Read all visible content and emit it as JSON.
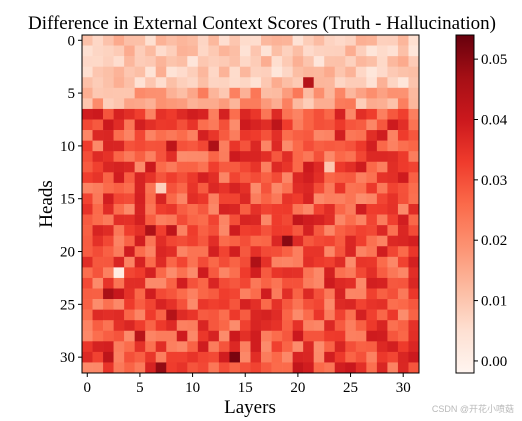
{
  "chart_data": {
    "type": "heatmap",
    "title": "Difference in External Context Scores (Truth - Hallucination)",
    "xlabel": "Layers",
    "ylabel": "Heads",
    "x_ticks": [
      "0",
      "5",
      "10",
      "15",
      "20",
      "25",
      "30"
    ],
    "y_ticks": [
      "0",
      "5",
      "10",
      "15",
      "20",
      "25",
      "30"
    ],
    "n_layers": 32,
    "n_heads": 32,
    "colorbar": {
      "colormap": "Reds",
      "vmin": -0.002,
      "vmax": 0.054,
      "ticks": [
        "0.00",
        "0.01",
        "0.02",
        "0.03",
        "0.04",
        "0.05"
      ]
    },
    "value_summary": {
      "heads_0_to_6": "low values, mostly 0.000-0.015",
      "heads_7_to_31": "mostly 0.020-0.040, scattered peaks up to ~0.052"
    },
    "notable_cells": [
      {
        "layer": 3,
        "head": 22,
        "value": 0.001
      },
      {
        "layer": 7,
        "head": 14,
        "value": 0.008
      },
      {
        "layer": 23,
        "head": 12,
        "value": 0.01
      },
      {
        "layer": 21,
        "head": 4,
        "value": 0.044
      },
      {
        "layer": 19,
        "head": 19,
        "value": 0.05
      },
      {
        "layer": 14,
        "head": 30,
        "value": 0.052
      },
      {
        "layer": 7,
        "head": 31,
        "value": 0.049
      }
    ]
  },
  "watermark": "CSDN @开花小喷菇"
}
